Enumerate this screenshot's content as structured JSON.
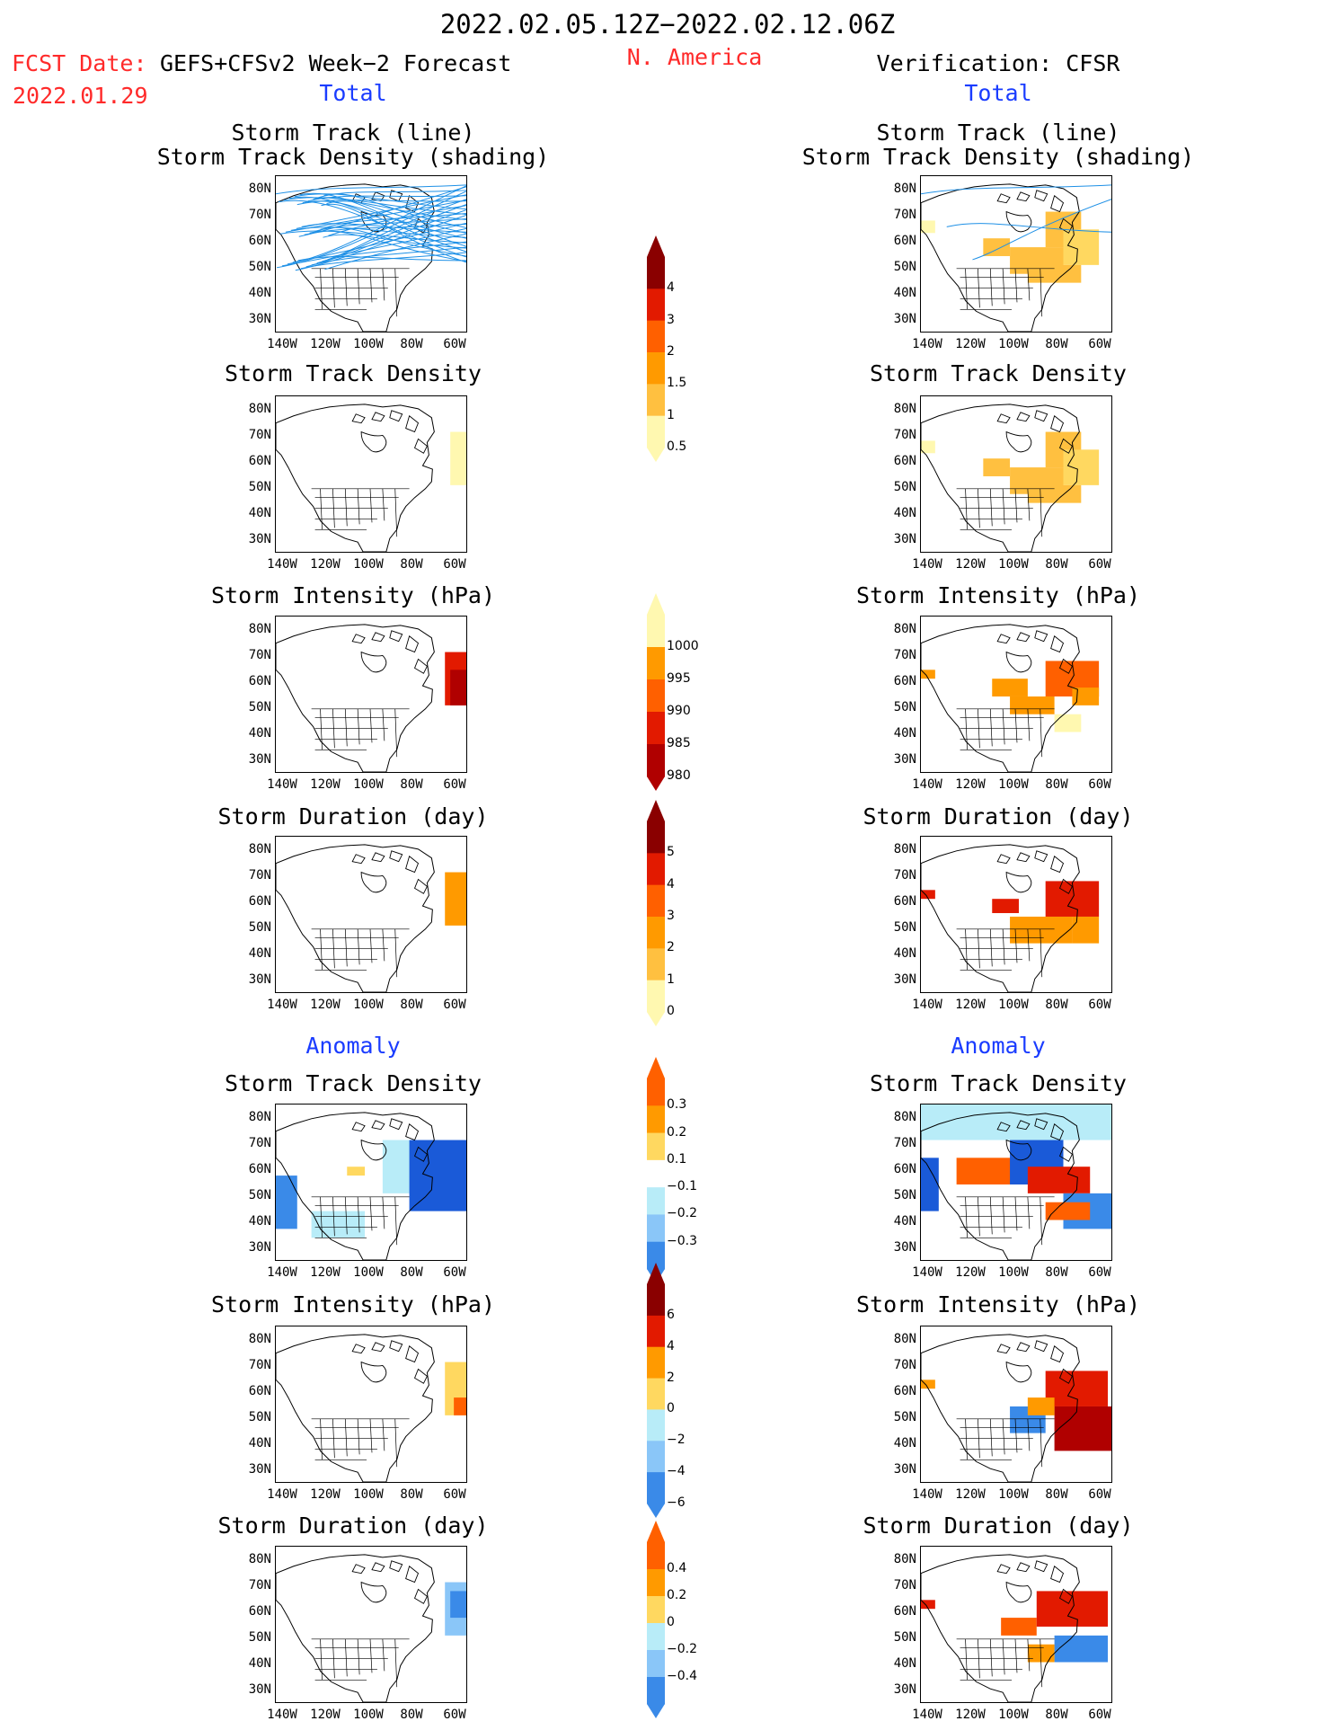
{
  "header": {
    "period": "2022.02.05.12Z−2022.02.12.06Z",
    "fcst_label": "FCST Date:",
    "fcst_model": "GEFS+CFSv2 Week−2 Forecast",
    "fcst_date": "2022.01.29",
    "region": "N. America",
    "verification": "Verification: CFSR"
  },
  "sections": {
    "total": "Total",
    "anomaly": "Anomaly"
  },
  "panel_titles": {
    "track_line": "Storm Track (line)",
    "track_shading": "Storm Track Density (shading)",
    "density": "Storm Track Density",
    "intensity": "Storm Intensity (hPa)",
    "duration": "Storm Duration (day)"
  },
  "axes": {
    "lat": [
      "80N",
      "70N",
      "60N",
      "50N",
      "40N",
      "30N"
    ],
    "lon": [
      "140W",
      "120W",
      "100W",
      "80W",
      "60W"
    ]
  },
  "colorbars": {
    "density_total": [
      "4",
      "3",
      "2",
      "1.5",
      "1",
      "0.5"
    ],
    "intensity_total": [
      "1000",
      "995",
      "990",
      "985",
      "980"
    ],
    "duration_total": [
      "5",
      "4",
      "3",
      "2",
      "1",
      "0"
    ],
    "density_anom": [
      "0.3",
      "0.2",
      "0.1",
      "−0.1",
      "−0.2",
      "−0.3"
    ],
    "intensity_anom": [
      "6",
      "4",
      "2",
      "0",
      "−2",
      "−4",
      "−6"
    ],
    "duration_anom": [
      "0.4",
      "0.2",
      "0",
      "−0.2",
      "−0.4"
    ]
  },
  "colors": {
    "track_line": "#1e90e6",
    "yellow_light": "#fff8b0",
    "yellow": "#ffd860",
    "orange_light": "#ffc040",
    "orange": "#ff9a00",
    "orange_red": "#ff6000",
    "red": "#e21a00",
    "dark_red": "#b00000",
    "maroon": "#8a0000",
    "blue_pale": "#b8ecf8",
    "blue_light": "#8ac6f8",
    "blue": "#3a8ae8",
    "blue_dark": "#1a5ad8",
    "header_red": "#ff2a2a",
    "section_blue": "#1a3cff"
  }
}
